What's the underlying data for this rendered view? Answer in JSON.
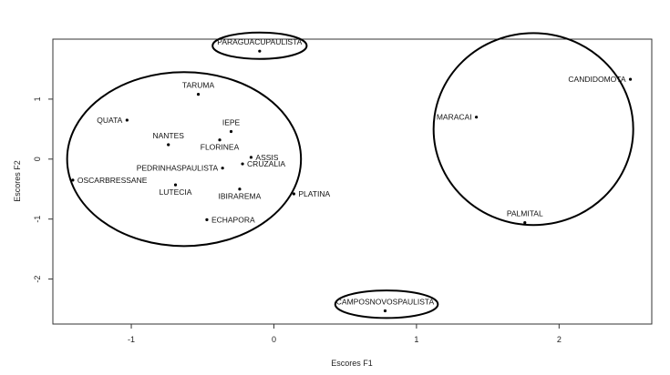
{
  "chart_data": {
    "type": "scatter",
    "xlabel": "Escores F1",
    "ylabel": "Escores F2",
    "xlim": [
      -1.55,
      2.65
    ],
    "ylim": [
      -2.75,
      2.0
    ],
    "x_ticks": [
      -1,
      0,
      1,
      2
    ],
    "y_ticks": [
      -2,
      -1,
      0,
      1
    ],
    "x_tick_labels": [
      "-1",
      "0",
      "1",
      "2"
    ],
    "y_tick_labels": [
      "-2",
      "-1",
      "0",
      "1"
    ],
    "grid": false,
    "points": [
      {
        "label": "PARAGUACUPAULISTA",
        "x": -0.1,
        "y": 1.8,
        "anchor": "top"
      },
      {
        "label": "TARUMA",
        "x": -0.53,
        "y": 1.08,
        "anchor": "top"
      },
      {
        "label": "QUATA",
        "x": -1.03,
        "y": 0.65,
        "anchor": "left"
      },
      {
        "label": "IEPE",
        "x": -0.3,
        "y": 0.46,
        "anchor": "top"
      },
      {
        "label": "NANTES",
        "x": -0.74,
        "y": 0.24,
        "anchor": "top"
      },
      {
        "label": "FLORINEA",
        "x": -0.38,
        "y": 0.32,
        "anchor": "below"
      },
      {
        "label": "ASSIS",
        "x": -0.16,
        "y": 0.03,
        "anchor": "right"
      },
      {
        "label": "CRUZALIA",
        "x": -0.22,
        "y": -0.08,
        "anchor": "right"
      },
      {
        "label": "PEDRINHASPAULISTA",
        "x": -0.36,
        "y": -0.15,
        "anchor": "left"
      },
      {
        "label": "OSCARBRESSANE",
        "x": -1.41,
        "y": -0.35,
        "anchor": "right"
      },
      {
        "label": "LUTECIA",
        "x": -0.69,
        "y": -0.43,
        "anchor": "below"
      },
      {
        "label": "IBIRAREMA",
        "x": -0.24,
        "y": -0.5,
        "anchor": "below"
      },
      {
        "label": "PLATINA",
        "x": 0.14,
        "y": -0.58,
        "anchor": "right"
      },
      {
        "label": "ECHAPORA",
        "x": -0.47,
        "y": -1.01,
        "anchor": "right"
      },
      {
        "label": "CANDIDOMOTA",
        "x": 2.5,
        "y": 1.33,
        "anchor": "left"
      },
      {
        "label": "MARACAI",
        "x": 1.42,
        "y": 0.7,
        "anchor": "left"
      },
      {
        "label": "PALMITAL",
        "x": 1.76,
        "y": -1.06,
        "anchor": "top"
      },
      {
        "label": "CAMPOSNOVOSPAULISTA",
        "x": 0.78,
        "y": -2.53,
        "anchor": "top"
      }
    ],
    "ellipses": [
      {
        "cx": -0.1,
        "cy": 1.89,
        "rx": 0.33,
        "ry": 0.22
      },
      {
        "cx": -0.63,
        "cy": 0.0,
        "rx": 0.82,
        "ry": 1.45
      },
      {
        "cx": 1.82,
        "cy": 0.5,
        "rx": 0.7,
        "ry": 1.6
      },
      {
        "cx": 0.79,
        "cy": -2.42,
        "rx": 0.36,
        "ry": 0.23
      }
    ]
  }
}
